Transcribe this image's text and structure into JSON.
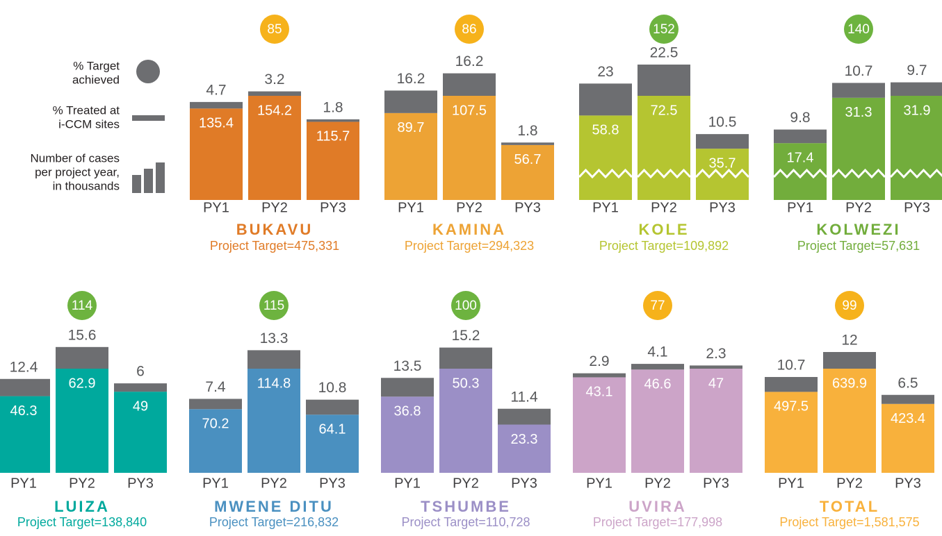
{
  "legend": [
    {
      "lines": [
        "% Target",
        "achieved"
      ]
    },
    {
      "lines": [
        "% Treated at",
        "i-CCM sites"
      ]
    },
    {
      "lines": [
        "Number of cases",
        "per project year,",
        "in thousands"
      ]
    }
  ],
  "chart_data": [
    {
      "type": "bar",
      "title": "BUKAVU",
      "subtitle": "Project Target=475,331",
      "color": "#e07b27",
      "badge": {
        "value": 85,
        "color": "#f6b21b"
      },
      "categories": [
        "PY1",
        "PY2",
        "PY3"
      ],
      "values": [
        135.4,
        154.2,
        115.7
      ],
      "treated": [
        4.7,
        3.2,
        1.8
      ],
      "treated_color": "#6d6e71",
      "broken_axis": false
    },
    {
      "type": "bar",
      "title": "KAMINA",
      "subtitle": "Project Target=294,323",
      "color": "#eda335",
      "badge": {
        "value": 86,
        "color": "#f6b21b"
      },
      "categories": [
        "PY1",
        "PY2",
        "PY3"
      ],
      "values": [
        89.7,
        107.5,
        56.7
      ],
      "treated": [
        16.2,
        16.2,
        1.8
      ],
      "treated_color": "#6d6e71",
      "broken_axis": false
    },
    {
      "type": "bar",
      "title": "KOLE",
      "subtitle": "Project Target=109,892",
      "color": "#b5c531",
      "badge": {
        "value": 152,
        "color": "#6db33f"
      },
      "categories": [
        "PY1",
        "PY2",
        "PY3"
      ],
      "values": [
        58.8,
        72.5,
        35.7
      ],
      "treated": [
        23,
        22.5,
        10.5
      ],
      "treated_color": "#6d6e71",
      "broken_axis": true
    },
    {
      "type": "bar",
      "title": "KOLWEZI",
      "subtitle": "Project Target=57,631",
      "color": "#72ad3c",
      "badge": {
        "value": 140,
        "color": "#6db33f"
      },
      "categories": [
        "PY1",
        "PY2",
        "PY3"
      ],
      "values": [
        17.4,
        31.3,
        31.9
      ],
      "treated": [
        9.8,
        10.7,
        9.7
      ],
      "treated_color": "#6d6e71",
      "broken_axis": true
    },
    {
      "type": "bar",
      "title": "LUIZA",
      "subtitle": "Project Target=138,840",
      "color": "#00a99d",
      "badge": {
        "value": 114,
        "color": "#6db33f"
      },
      "categories": [
        "PY1",
        "PY2",
        "PY3"
      ],
      "values": [
        46.3,
        62.9,
        49
      ],
      "treated": [
        12.4,
        15.6,
        6
      ],
      "treated_color": "#6d6e71",
      "broken_axis": false
    },
    {
      "type": "bar",
      "title": "MWENE DITU",
      "subtitle": "Project Target=216,832",
      "color": "#4a90c0",
      "badge": {
        "value": 115,
        "color": "#6db33f"
      },
      "categories": [
        "PY1",
        "PY2",
        "PY3"
      ],
      "values": [
        70.2,
        114.8,
        64.1
      ],
      "treated": [
        7.4,
        13.3,
        10.8
      ],
      "treated_color": "#6d6e71",
      "broken_axis": false
    },
    {
      "type": "bar",
      "title": "TSHUMBE",
      "subtitle": "Project Target=110,728",
      "color": "#9b8fc6",
      "badge": {
        "value": 100,
        "color": "#6db33f"
      },
      "categories": [
        "PY1",
        "PY2",
        "PY3"
      ],
      "values": [
        36.8,
        50.3,
        23.3
      ],
      "treated": [
        13.5,
        15.2,
        11.4
      ],
      "treated_color": "#6d6e71",
      "broken_axis": false
    },
    {
      "type": "bar",
      "title": "UVIRA",
      "subtitle": "Project Target=177,998",
      "color": "#cca4c8",
      "badge": {
        "value": 77,
        "color": "#f6b21b"
      },
      "categories": [
        "PY1",
        "PY2",
        "PY3"
      ],
      "values": [
        43.1,
        46.6,
        47
      ],
      "treated": [
        2.9,
        4.1,
        2.3
      ],
      "treated_color": "#6d6e71",
      "broken_axis": false
    },
    {
      "type": "bar",
      "title": "TOTAL",
      "subtitle": "Project Target=1,581,575",
      "color": "#f8b13c",
      "badge": {
        "value": 99,
        "color": "#f6b21b"
      },
      "categories": [
        "PY1",
        "PY2",
        "PY3"
      ],
      "values": [
        497.5,
        639.9,
        423.4
      ],
      "treated": [
        10.7,
        12,
        6.5
      ],
      "treated_color": "#6d6e71",
      "broken_axis": false
    }
  ]
}
